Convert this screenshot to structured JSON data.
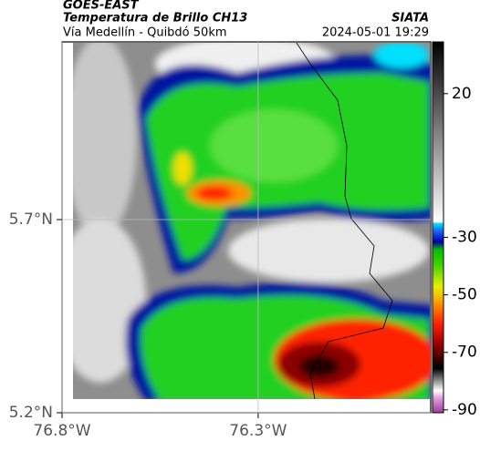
{
  "chart_data": {
    "type": "map",
    "title": "GOES-EAST",
    "subtitle": "Temperatura de Brillo CH13",
    "source": "SIATA",
    "region": "Vía Medellín - Quibdó 50km",
    "date": "2024-05-01 19:29",
    "xlim": [
      -76.8,
      -75.86
    ],
    "ylim": [
      5.2,
      6.16
    ],
    "xticks": [
      {
        "value": -76.8,
        "label": "76.8°W"
      },
      {
        "value": -76.3,
        "label": "76.3°W"
      }
    ],
    "yticks": [
      {
        "value": 5.7,
        "label": "5.7°N"
      },
      {
        "value": 5.2,
        "label": "5.2°N"
      }
    ],
    "grid": true,
    "colorbar_lim": [
      -91,
      38
    ],
    "colorbar_ticks": [
      20,
      -30,
      -50,
      -70,
      -90
    ]
  }
}
